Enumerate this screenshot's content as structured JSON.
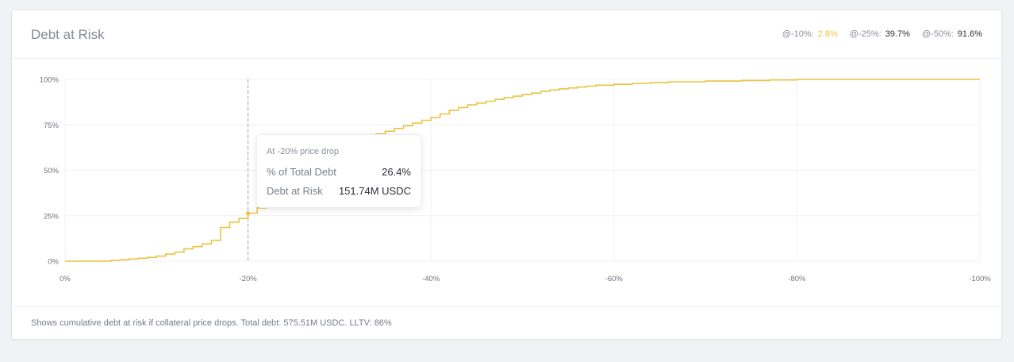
{
  "header": {
    "title": "Debt at Risk",
    "stats": [
      {
        "label": "@-10%:",
        "value": "2.8%",
        "accent": true
      },
      {
        "label": "@-25%:",
        "value": "39.7%",
        "accent": false
      },
      {
        "label": "@-50%:",
        "value": "91.6%",
        "accent": false
      }
    ]
  },
  "tooltip": {
    "title": "At -20% price drop",
    "rows": [
      {
        "label": "% of Total Debt",
        "value": "26.4%"
      },
      {
        "label": "Debt at Risk",
        "value": "151.74M USDC"
      }
    ]
  },
  "footer": {
    "note": "Shows cumulative debt at risk if collateral price drops. Total debt: 575.51M USDC. LLTV: 86%"
  },
  "colors": {
    "line": "#e9c441",
    "accent": "#e9c441",
    "grid": "#f0f1f4"
  },
  "chart_data": {
    "type": "line",
    "step": true,
    "x_ticks": [
      "0%",
      "-20%",
      "-40%",
      "-60%",
      "-80%",
      "-100%"
    ],
    "y_ticks": [
      "100%",
      "75%",
      "50%",
      "25%",
      "0%"
    ],
    "xlim": [
      0,
      -100
    ],
    "ylim": [
      0,
      100
    ],
    "grid": true,
    "marker": {
      "x": -20,
      "y": 26.4
    },
    "series": [
      {
        "x": [
          0,
          -5,
          -6,
          -7,
          -8,
          -9,
          -10,
          -11,
          -12,
          -13,
          -14,
          -15,
          -16,
          -17,
          -18,
          -19,
          -20,
          -21,
          -22,
          -23,
          -24,
          -25,
          -26,
          -27,
          -28,
          -29,
          -30,
          -31,
          -32,
          -33,
          -34,
          -35,
          -36,
          -37,
          -38,
          -39,
          -40,
          -41,
          -42,
          -43,
          -44,
          -45,
          -46,
          -47,
          -48,
          -49,
          -50,
          -51,
          -52,
          -53,
          -54,
          -55,
          -56,
          -57,
          -58,
          -60,
          -62,
          -64,
          -66,
          -70,
          -74,
          -77,
          -80,
          -90,
          -100
        ],
        "y": [
          0,
          0.4,
          0.8,
          1.2,
          1.6,
          2.1,
          2.8,
          3.9,
          5.0,
          6.8,
          8.0,
          9.5,
          11.5,
          18.5,
          21.5,
          23.5,
          26.4,
          29.3,
          32.0,
          34.5,
          37.0,
          39.7,
          44.0,
          48.0,
          53.0,
          58.0,
          62.0,
          65.0,
          67.0,
          68.5,
          70.0,
          71.5,
          73.0,
          74.5,
          76.0,
          77.5,
          79.0,
          81.0,
          83.0,
          84.5,
          86.0,
          87.0,
          88.0,
          89.0,
          90.0,
          90.8,
          91.6,
          92.5,
          93.5,
          94.2,
          94.8,
          95.3,
          95.8,
          96.3,
          96.8,
          97.3,
          97.8,
          98.2,
          98.7,
          99.1,
          99.4,
          99.7,
          100,
          100,
          100
        ]
      }
    ]
  }
}
